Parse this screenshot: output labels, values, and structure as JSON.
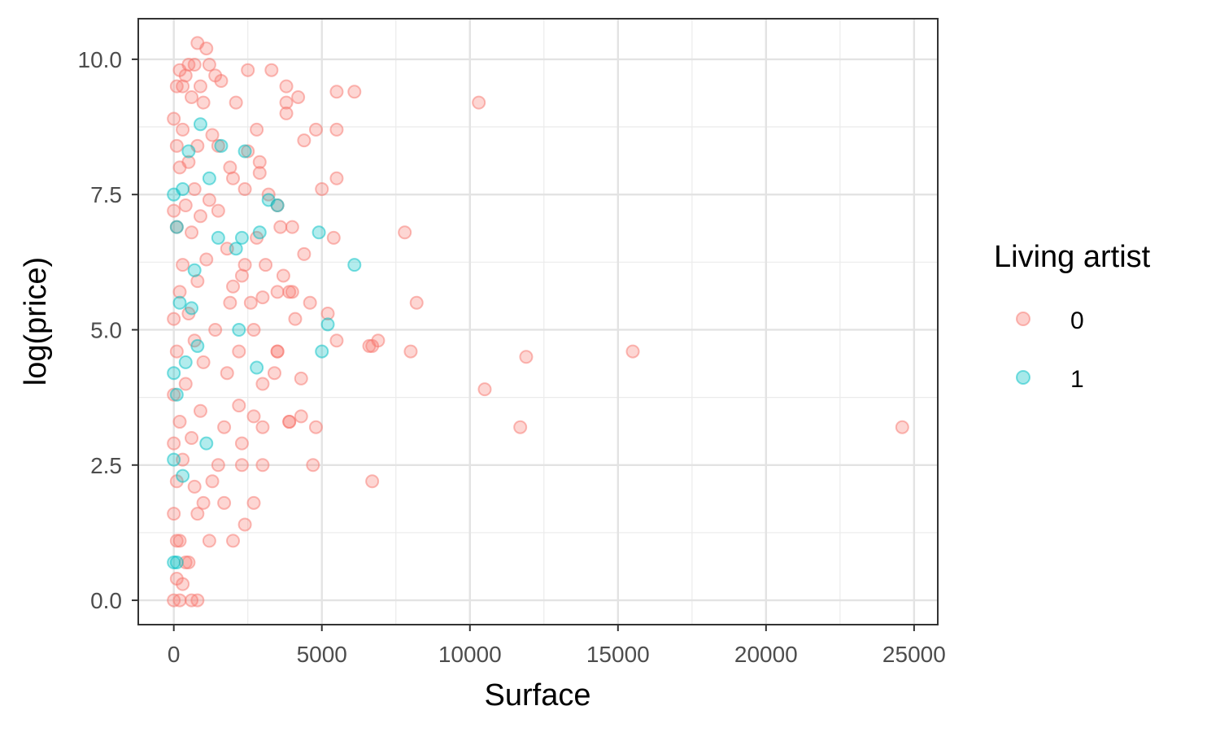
{
  "chart_data": {
    "type": "scatter",
    "xlabel": "Surface",
    "ylabel": "log(price)",
    "xlim": [
      -1200,
      25800
    ],
    "ylim": [
      -0.45,
      10.75
    ],
    "x_ticks": [
      0,
      5000,
      10000,
      15000,
      20000,
      25000
    ],
    "x_tick_labels": [
      "0",
      "5000",
      "10000",
      "15000",
      "20000",
      "25000"
    ],
    "y_ticks": [
      0,
      2.5,
      5,
      7.5,
      10
    ],
    "y_tick_labels": [
      "0.0",
      "2.5",
      "5.0",
      "7.5",
      "10.0"
    ],
    "grid": true,
    "legend": {
      "title": "Living artist",
      "placement": "right",
      "entries": [
        {
          "label": "0",
          "color": "#F8766D"
        },
        {
          "label": "1",
          "color": "#00BFC4"
        }
      ]
    },
    "series": [
      {
        "name": "0",
        "color": "#F8766D",
        "points": [
          [
            10300,
            9.2
          ],
          [
            24600,
            3.2
          ],
          [
            15500,
            4.6
          ],
          [
            11900,
            4.5
          ],
          [
            11700,
            3.2
          ],
          [
            10500,
            3.9
          ],
          [
            8200,
            5.5
          ],
          [
            8000,
            4.6
          ],
          [
            7800,
            6.8
          ],
          [
            6900,
            4.8
          ],
          [
            6700,
            4.7
          ],
          [
            6600,
            4.7
          ],
          [
            6700,
            2.2
          ],
          [
            6100,
            9.4
          ],
          [
            5500,
            9.4
          ],
          [
            5500,
            8.7
          ],
          [
            5500,
            7.8
          ],
          [
            5400,
            6.7
          ],
          [
            5500,
            4.8
          ],
          [
            5200,
            5.3
          ],
          [
            5000,
            7.6
          ],
          [
            4800,
            8.7
          ],
          [
            4800,
            3.2
          ],
          [
            4700,
            2.5
          ],
          [
            4400,
            8.5
          ],
          [
            4600,
            5.5
          ],
          [
            4400,
            6.4
          ],
          [
            4300,
            4.1
          ],
          [
            4300,
            3.4
          ],
          [
            4200,
            9.3
          ],
          [
            4000,
            6.9
          ],
          [
            4100,
            5.2
          ],
          [
            3900,
            5.7
          ],
          [
            3900,
            3.3
          ],
          [
            3800,
            9.5
          ],
          [
            3800,
            9.2
          ],
          [
            3800,
            9.0
          ],
          [
            3700,
            6.0
          ],
          [
            3600,
            6.9
          ],
          [
            3500,
            7.3
          ],
          [
            3500,
            5.7
          ],
          [
            3500,
            4.6
          ],
          [
            3400,
            4.2
          ],
          [
            3300,
            9.8
          ],
          [
            3200,
            7.5
          ],
          [
            3100,
            6.2
          ],
          [
            3000,
            5.6
          ],
          [
            3000,
            4.0
          ],
          [
            3000,
            3.2
          ],
          [
            3000,
            2.5
          ],
          [
            2900,
            8.1
          ],
          [
            2900,
            7.9
          ],
          [
            2800,
            8.7
          ],
          [
            2800,
            6.7
          ],
          [
            2700,
            5.0
          ],
          [
            2700,
            3.4
          ],
          [
            2700,
            1.8
          ],
          [
            2500,
            9.8
          ],
          [
            2500,
            8.3
          ],
          [
            2400,
            7.6
          ],
          [
            2400,
            6.2
          ],
          [
            2300,
            6.0
          ],
          [
            2200,
            4.6
          ],
          [
            2200,
            3.6
          ],
          [
            2300,
            2.9
          ],
          [
            2300,
            2.5
          ],
          [
            2400,
            1.4
          ],
          [
            2100,
            9.2
          ],
          [
            2000,
            7.8
          ],
          [
            2000,
            1.1
          ],
          [
            1900,
            8.0
          ],
          [
            1900,
            5.5
          ],
          [
            1800,
            6.5
          ],
          [
            1800,
            4.2
          ],
          [
            1700,
            3.2
          ],
          [
            1700,
            1.8
          ],
          [
            1600,
            9.6
          ],
          [
            1500,
            8.4
          ],
          [
            1500,
            2.5
          ],
          [
            1400,
            9.7
          ],
          [
            1400,
            5.0
          ],
          [
            1300,
            8.6
          ],
          [
            1300,
            2.2
          ],
          [
            1200,
            9.9
          ],
          [
            1200,
            7.4
          ],
          [
            1200,
            1.1
          ],
          [
            1100,
            10.2
          ],
          [
            1100,
            6.3
          ],
          [
            1000,
            9.2
          ],
          [
            1000,
            4.4
          ],
          [
            1000,
            1.8
          ],
          [
            900,
            9.5
          ],
          [
            900,
            7.1
          ],
          [
            900,
            3.5
          ],
          [
            800,
            10.3
          ],
          [
            800,
            8.4
          ],
          [
            800,
            5.9
          ],
          [
            800,
            0.0
          ],
          [
            700,
            9.9
          ],
          [
            700,
            7.6
          ],
          [
            700,
            4.8
          ],
          [
            700,
            2.1
          ],
          [
            600,
            9.3
          ],
          [
            600,
            6.8
          ],
          [
            600,
            3.0
          ],
          [
            600,
            0.0
          ],
          [
            500,
            9.9
          ],
          [
            500,
            8.1
          ],
          [
            500,
            5.3
          ],
          [
            500,
            0.7
          ],
          [
            400,
            9.7
          ],
          [
            400,
            7.3
          ],
          [
            400,
            4.0
          ],
          [
            400,
            0.7
          ],
          [
            300,
            9.5
          ],
          [
            300,
            8.7
          ],
          [
            300,
            6.2
          ],
          [
            300,
            2.6
          ],
          [
            300,
            0.3
          ],
          [
            200,
            9.8
          ],
          [
            200,
            8.0
          ],
          [
            200,
            5.7
          ],
          [
            200,
            3.3
          ],
          [
            200,
            1.1
          ],
          [
            200,
            0.0
          ],
          [
            100,
            9.5
          ],
          [
            100,
            8.4
          ],
          [
            100,
            6.9
          ],
          [
            100,
            4.6
          ],
          [
            100,
            2.2
          ],
          [
            100,
            1.1
          ],
          [
            100,
            0.4
          ],
          [
            0,
            8.9
          ],
          [
            0,
            7.2
          ],
          [
            0,
            5.2
          ],
          [
            0,
            3.8
          ],
          [
            0,
            2.9
          ],
          [
            0,
            1.6
          ],
          [
            0,
            0.0
          ],
          [
            3500,
            4.6
          ],
          [
            3900,
            3.3
          ],
          [
            4000,
            5.7
          ],
          [
            2600,
            5.5
          ],
          [
            2000,
            5.8
          ],
          [
            1500,
            7.2
          ],
          [
            800,
            1.6
          ]
        ]
      },
      {
        "name": "1",
        "color": "#00BFC4",
        "points": [
          [
            4900,
            6.8
          ],
          [
            6100,
            6.2
          ],
          [
            5200,
            5.1
          ],
          [
            5000,
            4.6
          ],
          [
            2900,
            6.8
          ],
          [
            2800,
            4.3
          ],
          [
            2400,
            8.3
          ],
          [
            2300,
            6.7
          ],
          [
            2100,
            6.5
          ],
          [
            2200,
            5.0
          ],
          [
            3200,
            7.4
          ],
          [
            3500,
            7.3
          ],
          [
            1600,
            8.4
          ],
          [
            1500,
            6.7
          ],
          [
            1200,
            7.8
          ],
          [
            1100,
            2.9
          ],
          [
            900,
            8.8
          ],
          [
            800,
            4.7
          ],
          [
            700,
            6.1
          ],
          [
            600,
            5.4
          ],
          [
            500,
            8.3
          ],
          [
            400,
            4.4
          ],
          [
            300,
            7.6
          ],
          [
            300,
            2.3
          ],
          [
            200,
            5.5
          ],
          [
            100,
            6.9
          ],
          [
            100,
            3.8
          ],
          [
            0,
            0.7
          ],
          [
            0,
            4.2
          ],
          [
            0,
            7.5
          ],
          [
            0,
            2.6
          ],
          [
            100,
            0.7
          ]
        ]
      }
    ]
  }
}
